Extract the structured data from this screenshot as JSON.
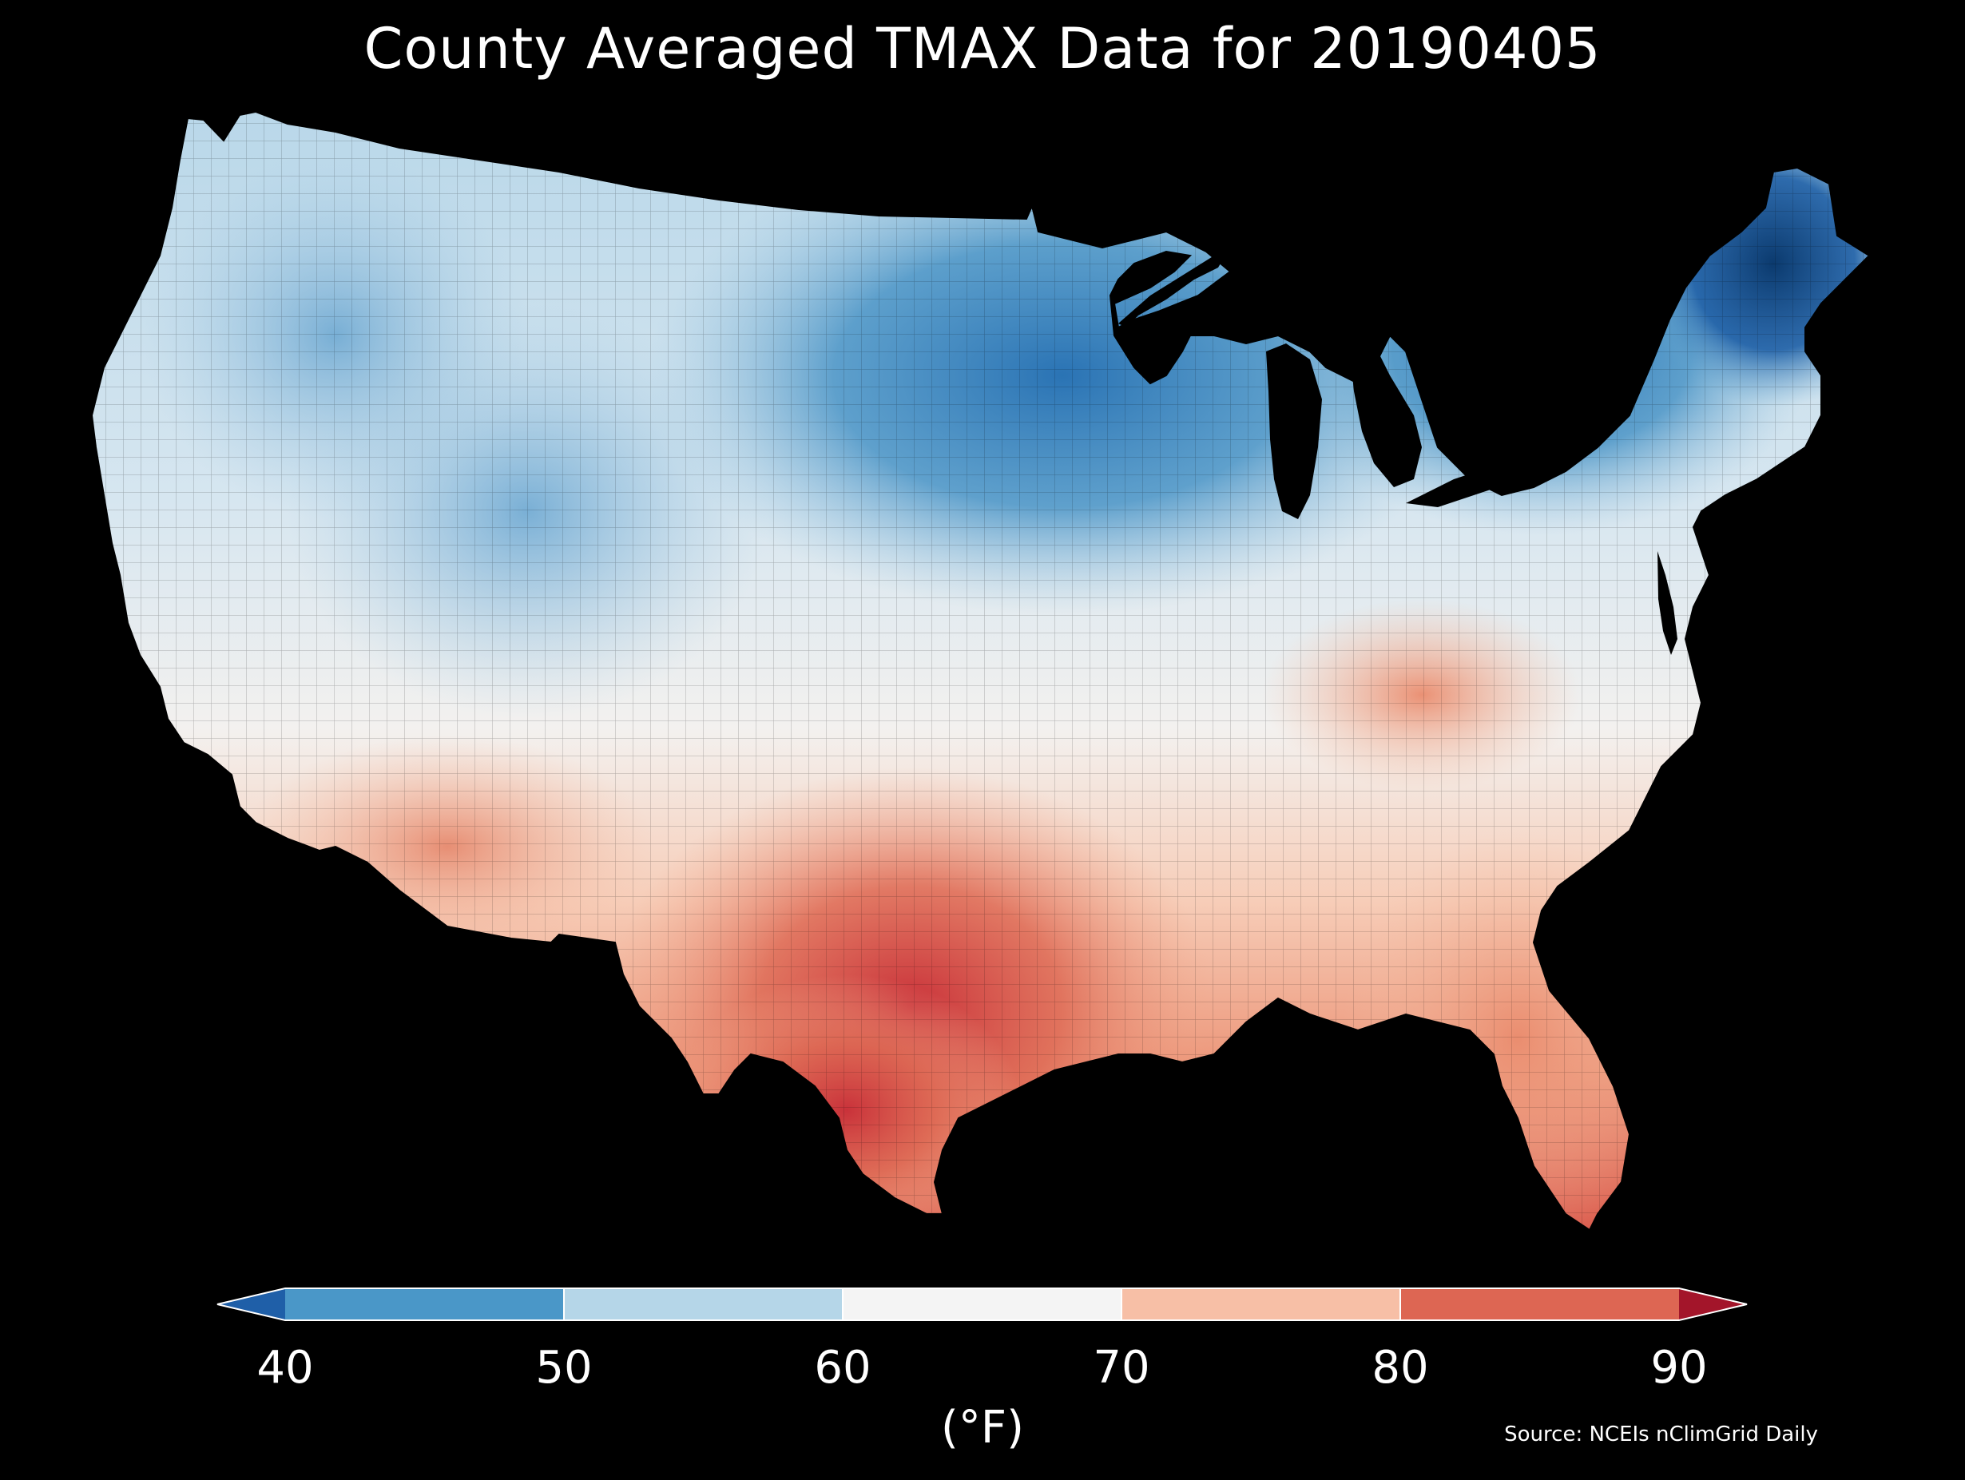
{
  "title": "County Averaged TMAX Data for 20190405",
  "source": "Source: NCEIs nClimGrid Daily",
  "colorbar": {
    "label": "(°F)",
    "ticks": [
      "40",
      "50",
      "60",
      "70",
      "80",
      "90"
    ],
    "bins": [
      {
        "range": "<40",
        "color": "#1f5fa8"
      },
      {
        "range": "40-50",
        "color": "#4a97c8"
      },
      {
        "range": "50-60",
        "color": "#b5d6e8"
      },
      {
        "range": "60-70",
        "color": "#f4f4f4"
      },
      {
        "range": "70-80",
        "color": "#f7bfa6"
      },
      {
        "range": "80-90",
        "color": "#dd6653"
      },
      {
        "range": ">90",
        "color": "#a3152a"
      }
    ],
    "extend": "both"
  },
  "map": {
    "region": "Contiguous United States",
    "variable": "TMAX",
    "units": "°F"
  },
  "colors": {
    "background": "#000000",
    "text": "#ffffff"
  }
}
